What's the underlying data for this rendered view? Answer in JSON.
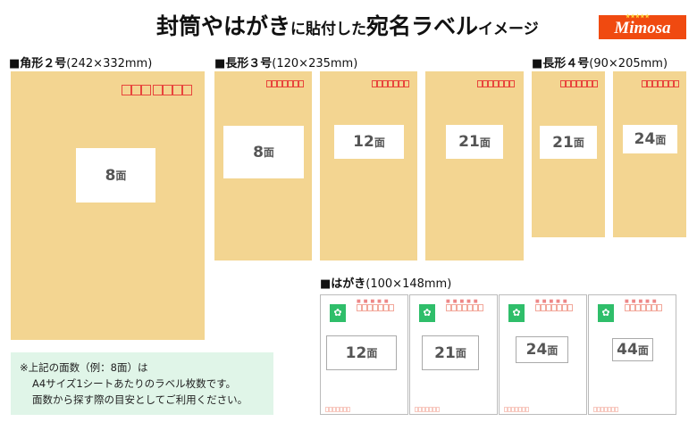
{
  "title": {
    "part1": "封筒やはがき",
    "part2": "に貼付した",
    "part3": "宛名ラベル",
    "part4": "イメージ"
  },
  "logo": {
    "text": "Mimosa",
    "stars": "★★★★★"
  },
  "sections": {
    "kaku2": {
      "name": "■角形２号",
      "dim": "(242×332mm)",
      "envelopes": [
        {
          "label": "8",
          "unit": "面"
        }
      ]
    },
    "naga3": {
      "name": "■長形３号",
      "dim": "(120×235mm)",
      "envelopes": [
        {
          "label": "8",
          "unit": "面"
        },
        {
          "label": "12",
          "unit": "面"
        },
        {
          "label": "21",
          "unit": "面"
        }
      ]
    },
    "naga4": {
      "name": "■長形４号",
      "dim": "(90×205mm)",
      "envelopes": [
        {
          "label": "21",
          "unit": "面"
        },
        {
          "label": "24",
          "unit": "面"
        }
      ]
    },
    "hagaki": {
      "name": "■はがき",
      "dim": "(100×148mm)",
      "cards": [
        {
          "label": "12",
          "unit": "面"
        },
        {
          "label": "21",
          "unit": "面"
        },
        {
          "label": "24",
          "unit": "面"
        },
        {
          "label": "44",
          "unit": "面"
        }
      ]
    }
  },
  "note": {
    "lines": [
      "※上記の面数（例：8面）は",
      "A4サイズ1シートあたりのラベル枚数です。",
      "面数から探す際の目安としてご利用ください。"
    ]
  },
  "colors": {
    "envelope": "#f3d591",
    "logo": "#f04a10",
    "note_bg": "#e0f5e8",
    "postal_red": "#e8453c",
    "stamp_green": "#2fbe6a"
  }
}
